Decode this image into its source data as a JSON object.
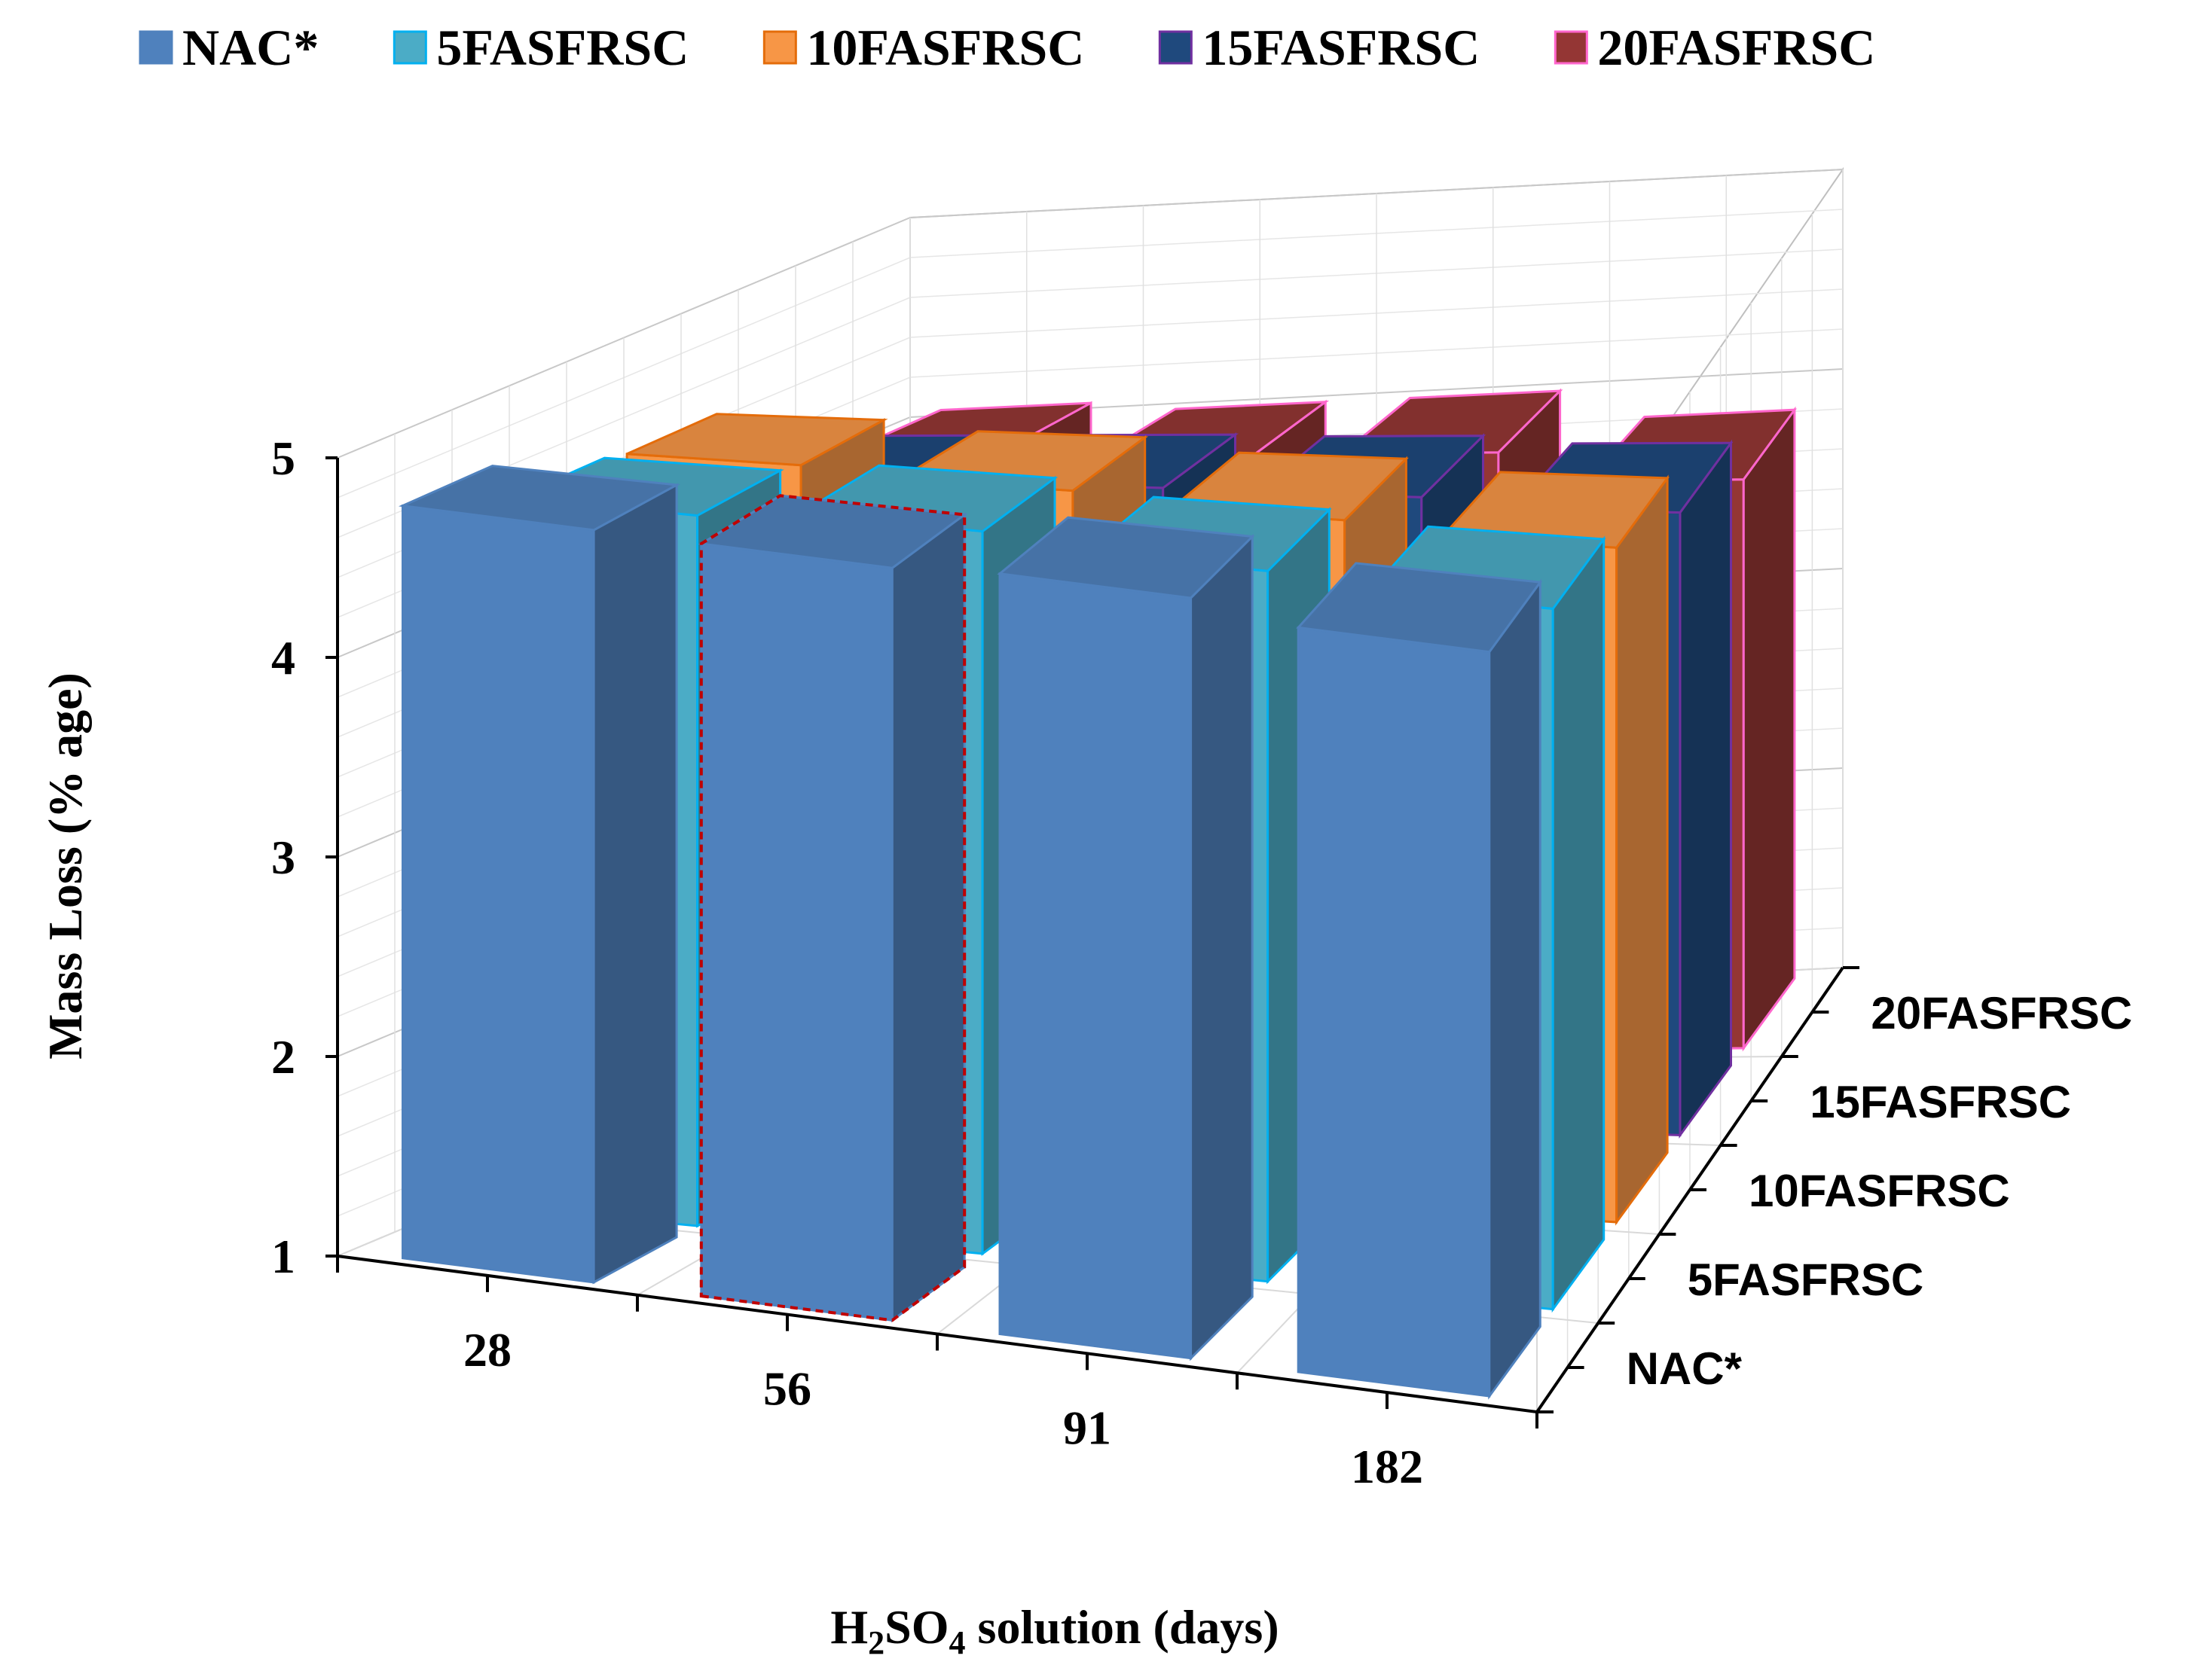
{
  "chart_data": {
    "type": "bar",
    "style": "3d-clustered",
    "title": "",
    "xlabel": "H2SO4 solution (days)",
    "xlabel_parts": {
      "main": "H",
      "sub1": "2",
      "mid": "SO",
      "sub2": "4",
      "tail": " solution (days)"
    },
    "ylabel": "Mass Loss (% age)",
    "ylim": [
      1,
      5
    ],
    "yticks": [
      "1",
      "2",
      "3",
      "4",
      "5"
    ],
    "grid": true,
    "legend_position": "top",
    "categories": [
      "28",
      "56",
      "91",
      "182"
    ],
    "series": [
      {
        "name": "NAC*",
        "color": "#4F81BD",
        "values": [
          4.77,
          4.77,
          4.81,
          4.73
        ]
      },
      {
        "name": "5FASFRSC",
        "color": "#4BACC6",
        "values": [
          4.56,
          4.62,
          4.56,
          4.51
        ]
      },
      {
        "name": "10FASFRSC",
        "color": "#F79646",
        "values": [
          4.53,
          4.49,
          4.43,
          4.38
        ]
      },
      {
        "name": "15FASFRSC",
        "color": "#1F497D",
        "values": [
          4.17,
          4.17,
          4.16,
          4.12
        ]
      },
      {
        "name": "20FASFRSC",
        "color": "#943634",
        "values": [
          4.05,
          4.0,
          4.0,
          3.85
        ]
      }
    ]
  }
}
